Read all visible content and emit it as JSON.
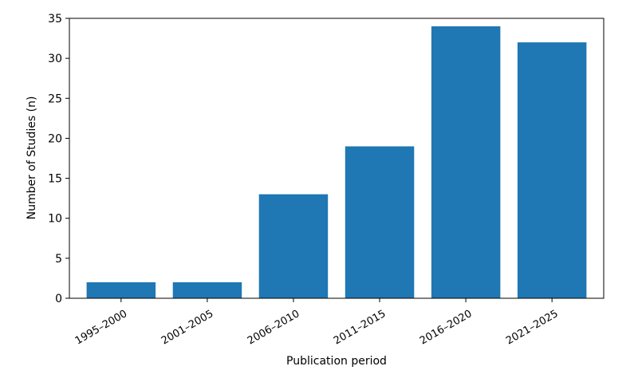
{
  "chart_data": {
    "type": "bar",
    "categories": [
      "1995–2000",
      "2001–2005",
      "2006–2010",
      "2011–2015",
      "2016–2020",
      "2021–2025"
    ],
    "values": [
      2,
      2,
      13,
      19,
      34,
      32
    ],
    "title": "",
    "xlabel": "Publication period",
    "ylabel": "Number of Studies (n)",
    "ylim": [
      0,
      35
    ],
    "yticks": [
      0,
      5,
      10,
      15,
      20,
      25,
      30,
      35
    ],
    "bar_color": "#1f77b4",
    "grid": false,
    "legend": "none"
  }
}
